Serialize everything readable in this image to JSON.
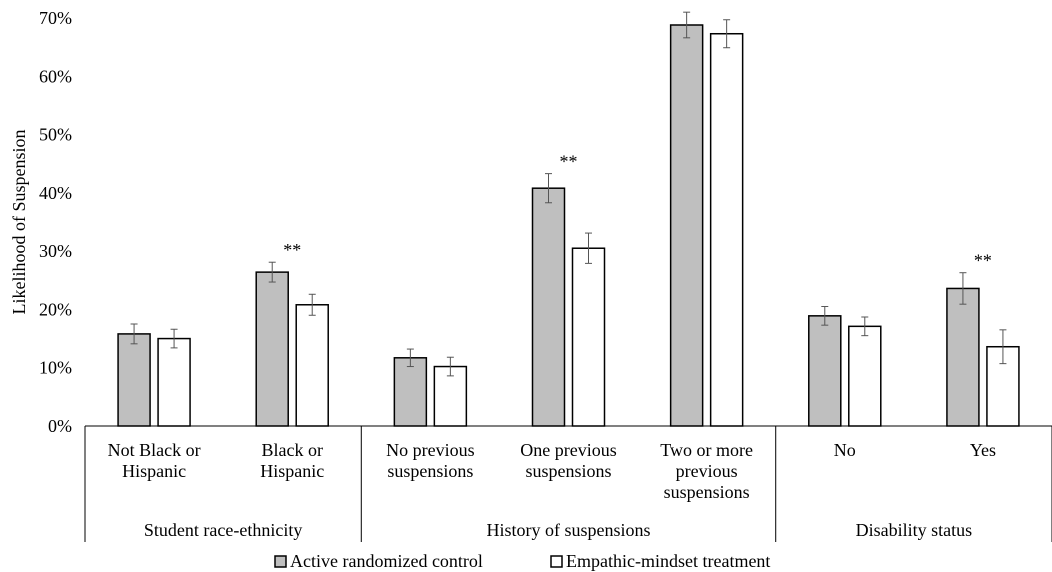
{
  "chart_data": {
    "type": "bar",
    "ylabel": "Likelihood of Suspension",
    "ylim": [
      0,
      70
    ],
    "yticks": [
      "0%",
      "10%",
      "20%",
      "30%",
      "40%",
      "50%",
      "60%",
      "70%"
    ],
    "groups": [
      {
        "name": "Student race-ethnicity",
        "categories": 2
      },
      {
        "name": "History of suspensions",
        "categories": 3
      },
      {
        "name": "Disability status",
        "categories": 2
      }
    ],
    "categories": [
      [
        "Not Black or",
        "Hispanic"
      ],
      [
        "Black or",
        "Hispanic"
      ],
      [
        "No previous",
        "suspensions"
      ],
      [
        "One previous",
        "suspensions"
      ],
      [
        "Two or more",
        "previous",
        "suspensions"
      ],
      [
        "No"
      ],
      [
        "Yes"
      ]
    ],
    "series": [
      {
        "name": "Active randomized control",
        "color": "#bfbfbf",
        "values": [
          15.8,
          26.4,
          11.7,
          40.8,
          68.8,
          18.9,
          23.6
        ],
        "errors": [
          1.7,
          1.7,
          1.5,
          2.5,
          2.2,
          1.6,
          2.7
        ]
      },
      {
        "name": "Empathic-mindset treatment",
        "color": "#ffffff",
        "values": [
          15.0,
          20.8,
          10.2,
          30.5,
          67.3,
          17.1,
          13.6
        ],
        "errors": [
          1.6,
          1.8,
          1.6,
          2.6,
          2.4,
          1.6,
          2.9
        ]
      }
    ],
    "annotations": [
      {
        "category": 1,
        "text": "**"
      },
      {
        "category": 3,
        "text": "**"
      },
      {
        "category": 6,
        "text": "**"
      }
    ],
    "legend_position": "bottom",
    "grid": false
  }
}
